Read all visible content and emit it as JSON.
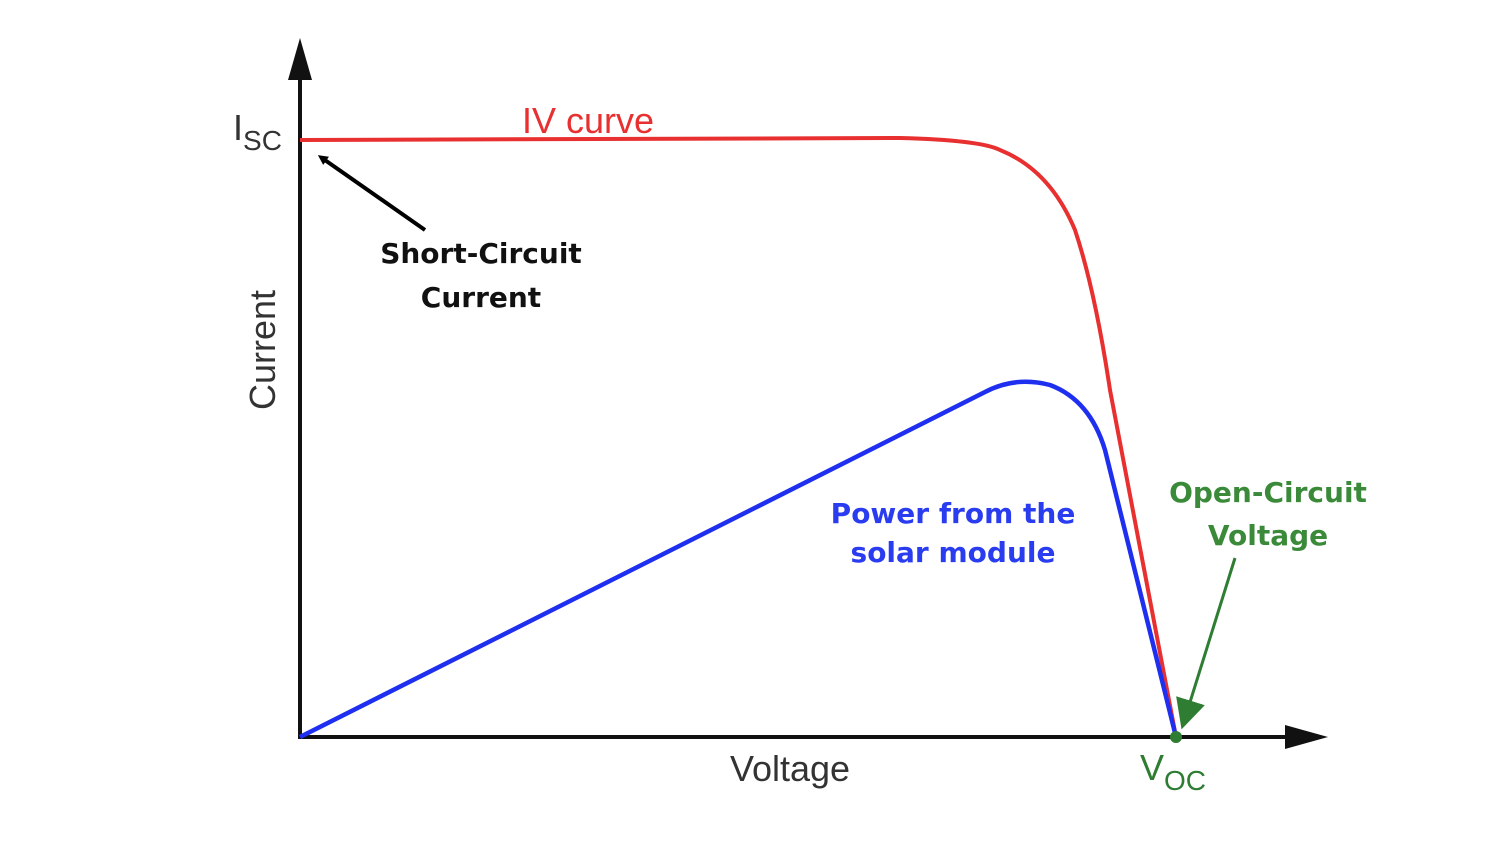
{
  "title": "IV curve",
  "axes": {
    "y_label": "Current",
    "x_label": "Voltage"
  },
  "markers": {
    "isc": {
      "symbol": "I",
      "subscript": "SC"
    },
    "voc": {
      "symbol": "V",
      "subscript": "OC"
    }
  },
  "annotations": {
    "short_circuit": [
      "Short-Circuit",
      "Current"
    ],
    "power": [
      "Power from the",
      "solar module"
    ],
    "open_circuit": [
      "Open-Circuit",
      "Voltage"
    ]
  }
}
